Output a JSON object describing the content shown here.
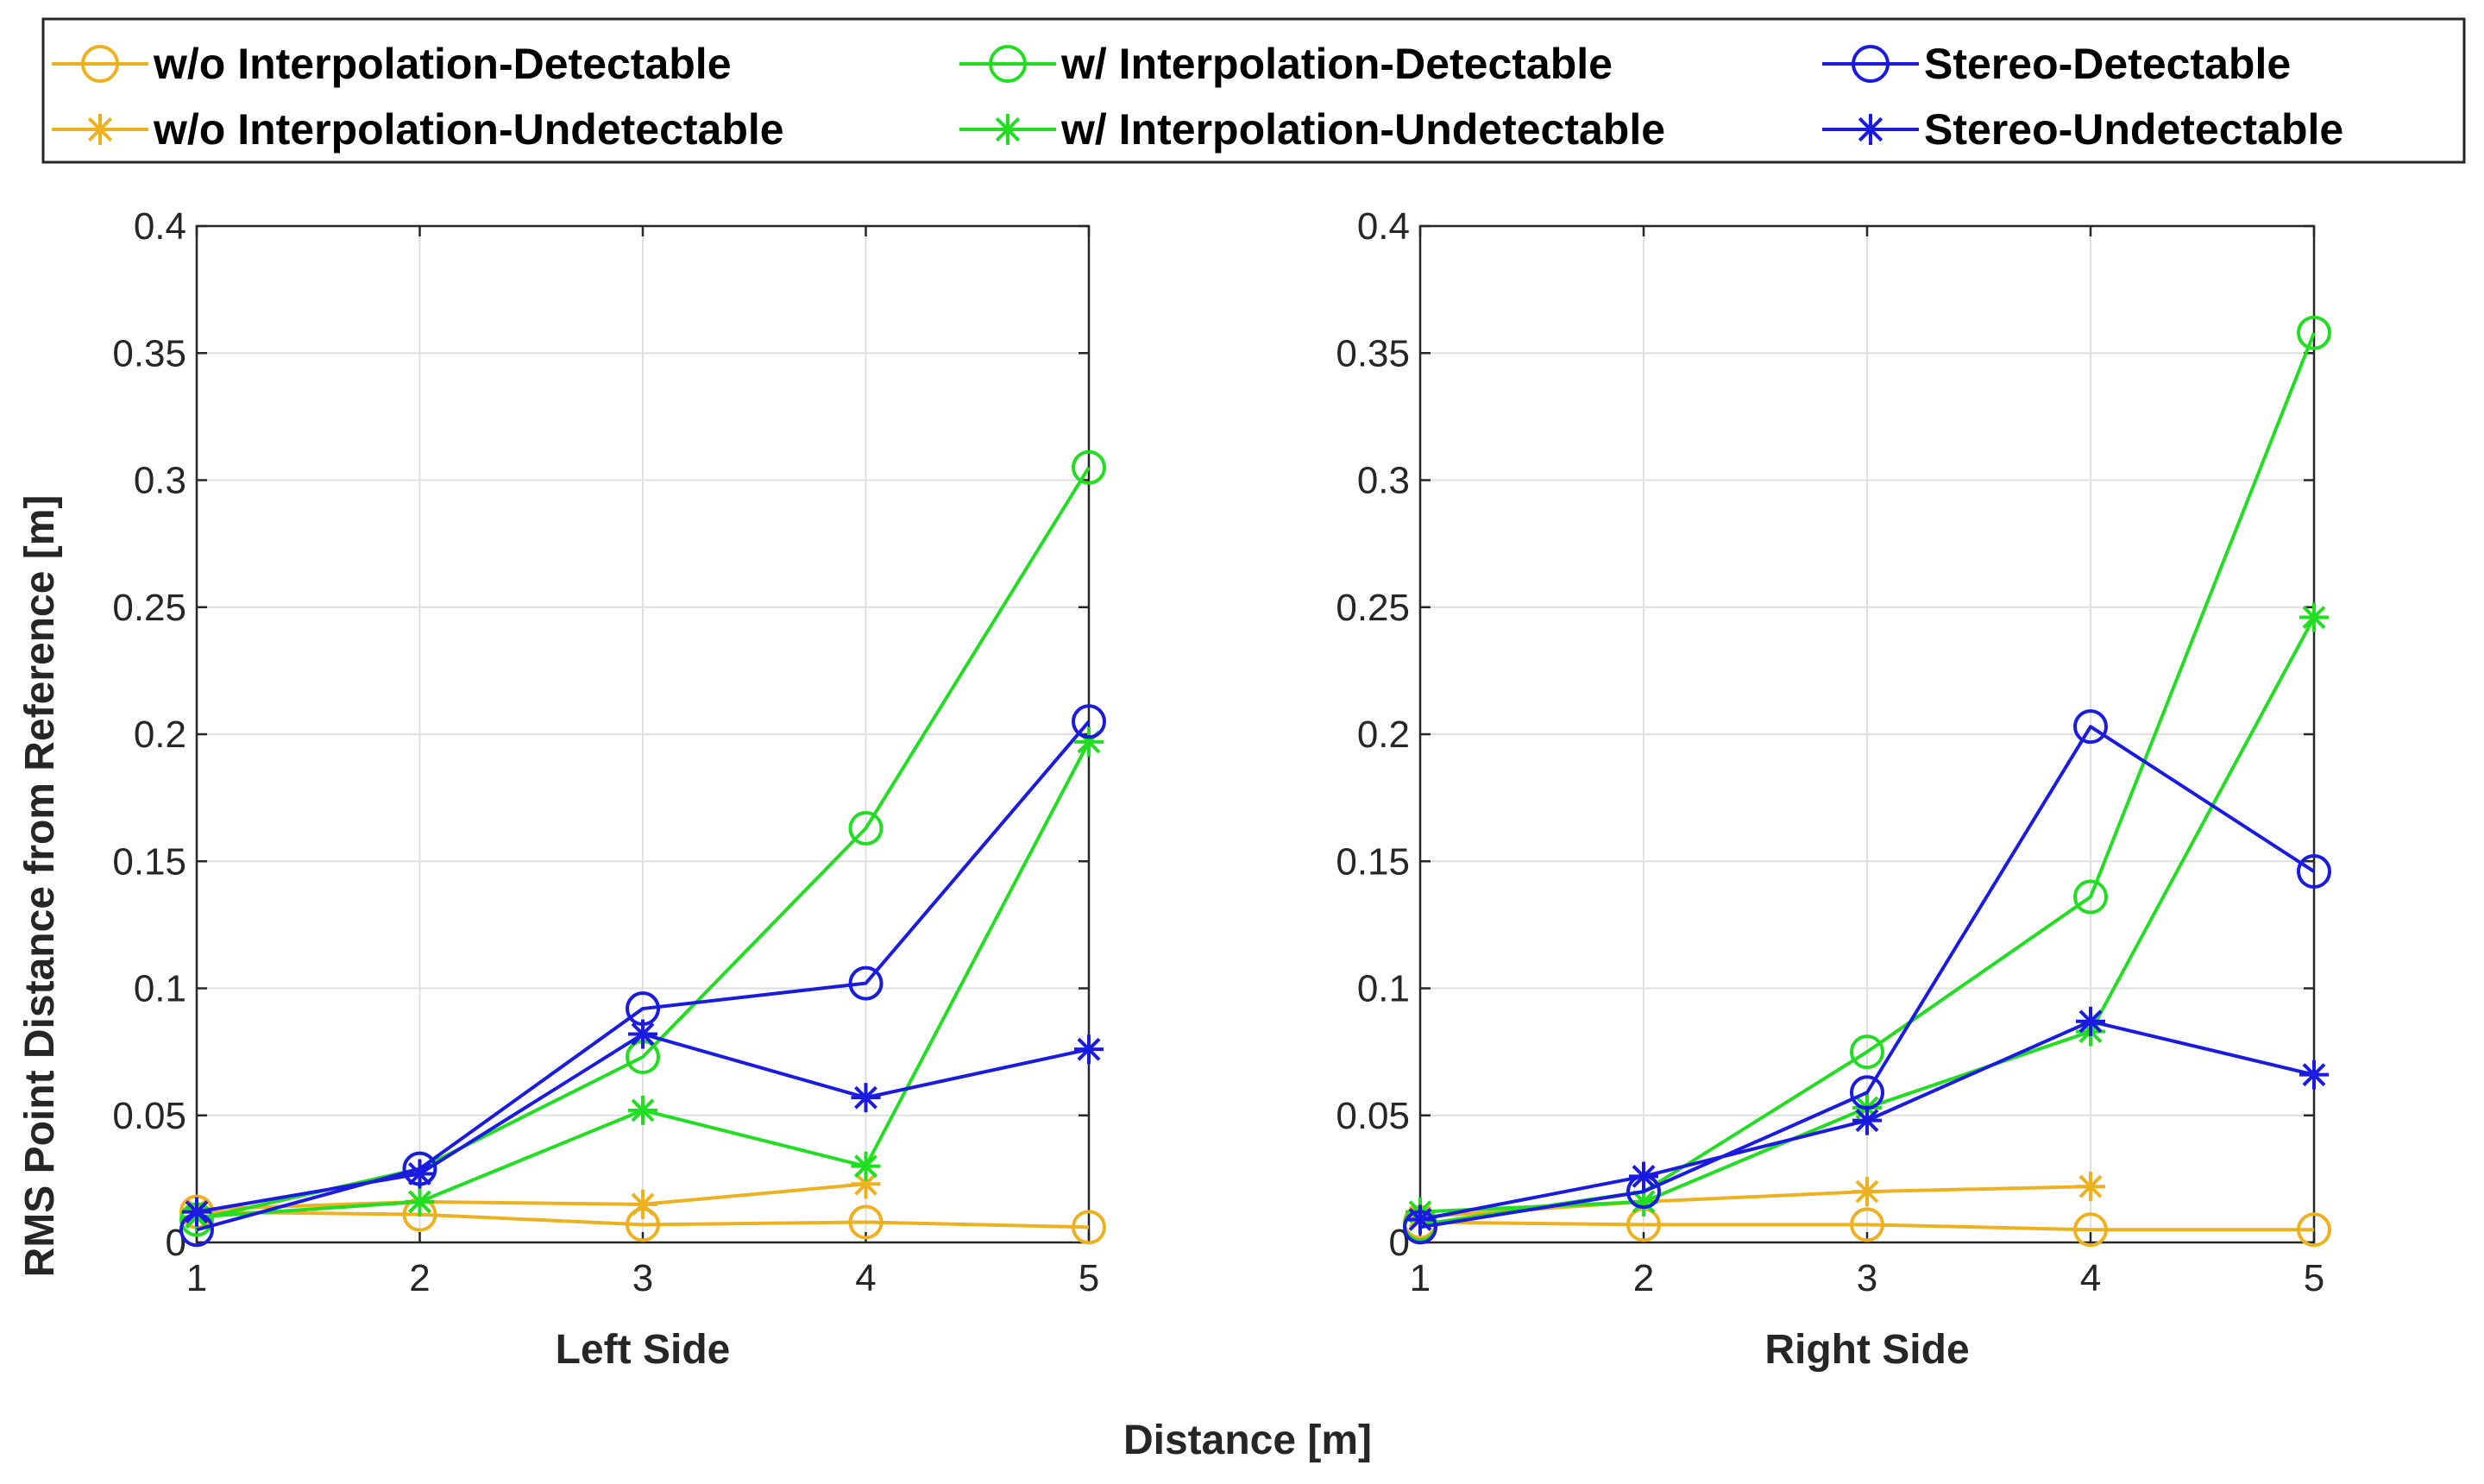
{
  "legend": {
    "entries": [
      {
        "label": "w/o Interpolation-Detectable",
        "color": "#EDB120",
        "marker": "circle"
      },
      {
        "label": "w/ Interpolation-Detectable",
        "color": "#22DD22",
        "marker": "circle"
      },
      {
        "label": "Stereo-Detectable",
        "color": "#1A1AE0",
        "marker": "circle"
      },
      {
        "label": "w/o Interpolation-Undetectable",
        "color": "#EDB120",
        "marker": "asterisk"
      },
      {
        "label": "w/ Interpolation-Undetectable",
        "color": "#22DD22",
        "marker": "asterisk"
      },
      {
        "label": "Stereo-Undetectable",
        "color": "#1A1AE0",
        "marker": "asterisk"
      }
    ]
  },
  "shared": {
    "ylabel": "RMS Point Distance from Reference [m]",
    "xlabel": "Distance [m]"
  },
  "chart_data": [
    {
      "type": "line",
      "title": "",
      "xlabel": "Left Side",
      "ylabel": "RMS Point Distance from Reference [m]",
      "xlim": [
        1,
        5
      ],
      "ylim": [
        0,
        0.4
      ],
      "grid": true,
      "x": [
        1,
        2,
        3,
        4,
        5
      ],
      "xticks": [
        "1",
        "2",
        "3",
        "4",
        "5"
      ],
      "yticks": [
        "0",
        "0.05",
        "0.1",
        "0.15",
        "0.2",
        "0.25",
        "0.3",
        "0.35",
        "0.4"
      ],
      "series": [
        {
          "name": "w/o Interpolation-Detectable",
          "color": "#EDB120",
          "marker": "circle",
          "values": [
            0.012,
            0.011,
            0.007,
            0.008,
            0.006
          ]
        },
        {
          "name": "w/o Interpolation-Undetectable",
          "color": "#EDB120",
          "marker": "asterisk",
          "values": [
            0.013,
            0.016,
            0.015,
            0.023,
            null
          ]
        },
        {
          "name": "w/ Interpolation-Detectable",
          "color": "#22DD22",
          "marker": "circle",
          "values": [
            0.009,
            0.029,
            0.073,
            0.163,
            0.305
          ]
        },
        {
          "name": "w/ Interpolation-Undetectable",
          "color": "#22DD22",
          "marker": "asterisk",
          "values": [
            0.01,
            0.016,
            0.052,
            0.03,
            0.197
          ]
        },
        {
          "name": "Stereo-Detectable",
          "color": "#1A1AE0",
          "marker": "circle",
          "values": [
            0.005,
            0.029,
            0.092,
            0.102,
            0.205
          ]
        },
        {
          "name": "Stereo-Undetectable",
          "color": "#1A1AE0",
          "marker": "asterisk",
          "values": [
            0.012,
            0.027,
            0.082,
            0.057,
            0.076
          ]
        }
      ]
    },
    {
      "type": "line",
      "title": "",
      "xlabel": "Right Side",
      "ylabel": "",
      "xlim": [
        1,
        5
      ],
      "ylim": [
        0,
        0.4
      ],
      "grid": true,
      "x": [
        1,
        2,
        3,
        4,
        5
      ],
      "xticks": [
        "1",
        "2",
        "3",
        "4",
        "5"
      ],
      "yticks": [
        "0",
        "0.05",
        "0.1",
        "0.15",
        "0.2",
        "0.25",
        "0.3",
        "0.35",
        "0.4"
      ],
      "series": [
        {
          "name": "w/o Interpolation-Detectable",
          "color": "#EDB120",
          "marker": "circle",
          "values": [
            0.008,
            0.007,
            0.007,
            0.005,
            0.005
          ]
        },
        {
          "name": "w/o Interpolation-Undetectable",
          "color": "#EDB120",
          "marker": "asterisk",
          "values": [
            0.01,
            0.016,
            0.02,
            0.022,
            null
          ]
        },
        {
          "name": "w/ Interpolation-Detectable",
          "color": "#22DD22",
          "marker": "circle",
          "values": [
            0.007,
            0.02,
            0.075,
            0.136,
            0.358
          ]
        },
        {
          "name": "w/ Interpolation-Undetectable",
          "color": "#22DD22",
          "marker": "asterisk",
          "values": [
            0.012,
            0.016,
            0.053,
            0.083,
            0.246
          ]
        },
        {
          "name": "Stereo-Detectable",
          "color": "#1A1AE0",
          "marker": "circle",
          "values": [
            0.006,
            0.02,
            0.059,
            0.203,
            0.146
          ]
        },
        {
          "name": "Stereo-Undetectable",
          "color": "#1A1AE0",
          "marker": "asterisk",
          "values": [
            0.009,
            0.026,
            0.048,
            0.087,
            0.066
          ]
        }
      ]
    }
  ]
}
